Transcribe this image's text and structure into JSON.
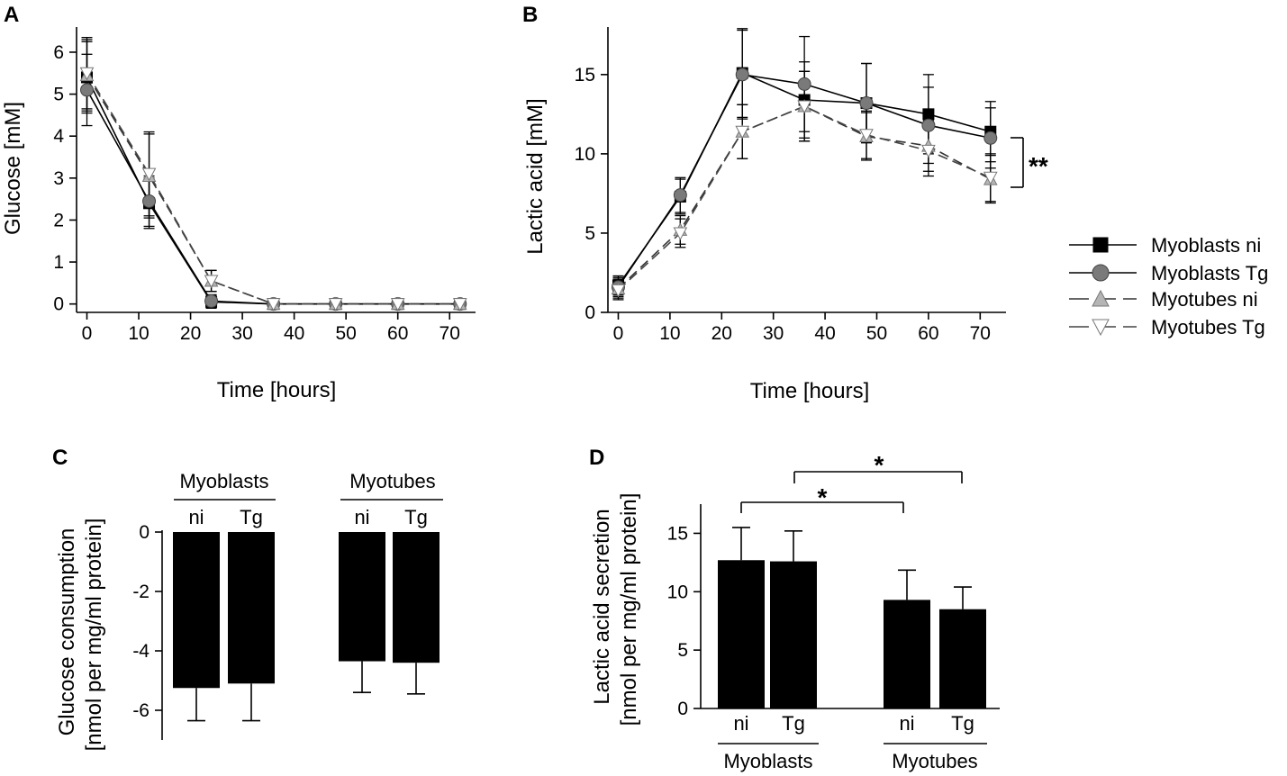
{
  "chart_data": [
    {
      "id": "A",
      "type": "line",
      "panel_label": "A",
      "xlabel": "Time [hours]",
      "ylabel": "Glucose [mM]",
      "x": [
        0,
        12,
        24,
        36,
        48,
        60,
        72
      ],
      "xlim": [
        -2,
        75
      ],
      "ylim": [
        -0.2,
        6.6
      ],
      "xticks": [
        0,
        10,
        20,
        30,
        40,
        50,
        60,
        70
      ],
      "yticks": [
        0,
        1,
        2,
        3,
        4,
        5,
        6
      ],
      "series": [
        {
          "name": "Myoblasts ni",
          "values": [
            5.4,
            2.4,
            0.05,
            0.0,
            0.0,
            0.0,
            0.0
          ],
          "err": [
            0.85,
            0.6,
            0.15,
            0.05,
            0.05,
            0.05,
            0.05
          ]
        },
        {
          "name": "Myoblasts Tg",
          "values": [
            5.1,
            2.45,
            0.07,
            0.0,
            0.0,
            0.0,
            0.0
          ],
          "err": [
            0.85,
            0.6,
            0.15,
            0.05,
            0.05,
            0.05,
            0.05
          ]
        },
        {
          "name": "Myotubes ni",
          "values": [
            5.45,
            3.05,
            0.55,
            0.0,
            0.0,
            0.0,
            0.0
          ],
          "err": [
            0.85,
            1.0,
            0.25,
            0.05,
            0.05,
            0.05,
            0.05
          ]
        },
        {
          "name": "Myotubes Tg",
          "values": [
            5.5,
            3.1,
            0.55,
            0.0,
            0.0,
            0.0,
            0.0
          ],
          "err": [
            0.85,
            1.0,
            0.25,
            0.05,
            0.05,
            0.05,
            0.05
          ]
        }
      ]
    },
    {
      "id": "B",
      "type": "line",
      "panel_label": "B",
      "xlabel": "Time [hours]",
      "ylabel": "Lactic acid [mM]",
      "x": [
        0,
        12,
        24,
        36,
        48,
        60,
        72
      ],
      "xlim": [
        -2,
        75
      ],
      "ylim": [
        0,
        18
      ],
      "xticks": [
        0,
        10,
        20,
        30,
        40,
        50,
        60,
        70
      ],
      "yticks": [
        0,
        5,
        10,
        15
      ],
      "significance": "**",
      "series": [
        {
          "name": "Myoblasts ni",
          "values": [
            1.7,
            7.3,
            15.1,
            13.4,
            13.2,
            12.5,
            11.4
          ],
          "err": [
            0.6,
            1.1,
            2.8,
            2.4,
            2.5,
            2.5,
            1.9
          ]
        },
        {
          "name": "Myoblasts Tg",
          "values": [
            1.6,
            7.4,
            15.0,
            14.4,
            13.2,
            11.8,
            11.0
          ],
          "err": [
            0.6,
            1.1,
            2.8,
            3.0,
            2.5,
            2.4,
            1.9
          ]
        },
        {
          "name": "Myotubes ni",
          "values": [
            1.5,
            5.2,
            11.4,
            13.0,
            11.1,
            10.5,
            8.4
          ],
          "err": [
            0.6,
            0.9,
            1.7,
            2.2,
            1.5,
            1.6,
            1.5
          ]
        },
        {
          "name": "Myotubes Tg",
          "values": [
            1.4,
            5.0,
            11.4,
            13.0,
            11.2,
            10.2,
            8.5
          ],
          "err": [
            0.6,
            0.9,
            1.7,
            2.2,
            1.5,
            1.6,
            1.5
          ]
        }
      ]
    },
    {
      "id": "C",
      "type": "bar",
      "panel_label": "C",
      "ylabel_lines": [
        "Glucose consumption",
        "[nmol per mg/ml protein]"
      ],
      "categories": [
        "ni",
        "Tg",
        "ni",
        "Tg"
      ],
      "groups": [
        "Myoblasts",
        "Myotubes"
      ],
      "values": [
        -5.25,
        -5.1,
        -4.35,
        -4.4
      ],
      "err": [
        1.1,
        1.25,
        1.05,
        1.05
      ],
      "ylim": [
        -7.0,
        0
      ],
      "yticks": [
        0,
        -2,
        -4,
        -6
      ]
    },
    {
      "id": "D",
      "type": "bar",
      "panel_label": "D",
      "ylabel_lines": [
        "Lactic acid secretion",
        "[nmol per mg/ml protein]"
      ],
      "categories": [
        "ni",
        "Tg",
        "ni",
        "Tg"
      ],
      "groups": [
        "Myoblasts",
        "Myotubes"
      ],
      "values": [
        12.7,
        12.6,
        9.3,
        8.5
      ],
      "err": [
        2.8,
        2.6,
        2.55,
        1.9
      ],
      "ylim": [
        0,
        17.5
      ],
      "yticks": [
        0,
        5,
        10,
        15
      ],
      "significance": [
        "*",
        "*"
      ]
    }
  ],
  "legend": {
    "items": [
      {
        "label": "Myoblasts ni",
        "marker": "filled-square",
        "line": "solid"
      },
      {
        "label": "Myoblasts Tg",
        "marker": "filled-circle",
        "line": "solid"
      },
      {
        "label": "Myotubes ni",
        "marker": "triangle-up",
        "line": "dashed"
      },
      {
        "label": "Myotubes Tg",
        "marker": "triangle-down",
        "line": "dashed"
      }
    ]
  }
}
